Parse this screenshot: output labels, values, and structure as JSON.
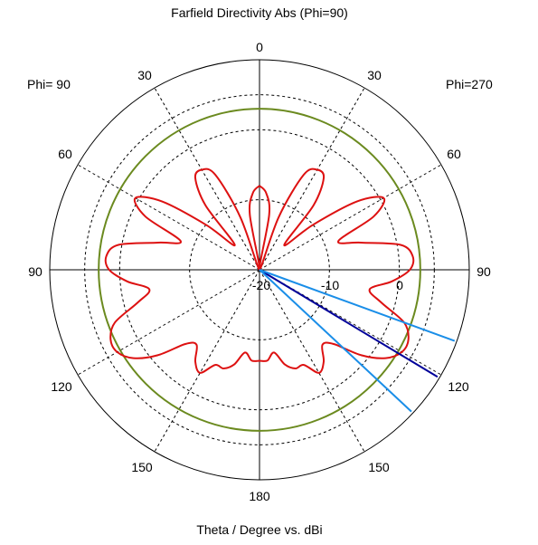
{
  "chart_data": {
    "type": "polar",
    "title": "Farfield Directivity Abs (Phi=90)",
    "xlabel": "Theta / Degree vs. dBi",
    "left_half_label": "Phi= 90",
    "right_half_label": "Phi=270",
    "angle_tick_labels": {
      "top": "0",
      "bottom": "180",
      "left": [
        "30",
        "60",
        "90",
        "120",
        "150"
      ],
      "right": [
        "30",
        "60",
        "90",
        "120",
        "150"
      ]
    },
    "radial_tick_labels": [
      "-20",
      "-10",
      "0"
    ],
    "radial_range_dbi": [
      -20,
      10
    ],
    "reference_circle_dbi": 3,
    "series": [
      {
        "color": "#dd1111",
        "theta_deg": [
          0,
          5,
          10,
          15,
          20,
          25,
          30,
          35,
          40,
          45,
          50,
          55,
          60,
          65,
          70,
          75,
          80,
          85,
          90,
          95,
          100,
          105,
          110,
          115,
          120,
          125,
          130,
          135,
          140,
          145,
          150,
          155,
          160,
          165,
          170,
          175,
          180,
          185,
          190,
          195,
          200,
          205,
          210,
          215,
          220,
          225,
          230,
          235,
          240,
          245,
          250,
          255,
          260,
          265,
          270,
          275,
          280,
          285,
          290,
          295,
          300,
          305,
          310,
          315,
          320,
          325,
          330,
          335,
          340,
          345,
          350,
          355,
          360
        ],
        "dbi": [
          -8,
          -9,
          -12,
          -20,
          -12,
          -5,
          -3.5,
          -4,
          -8,
          -15,
          -10,
          -3,
          0.5,
          -2,
          -8,
          -5,
          0.5,
          2,
          1.5,
          -1,
          -4,
          -2,
          2,
          3.5,
          3.5,
          2,
          -1,
          -5,
          -6,
          -4,
          -3,
          -5,
          -5,
          -6,
          -8,
          -7,
          -7,
          -7,
          -8,
          -6,
          -5,
          -5,
          -3,
          -4,
          -6,
          -5,
          -1,
          2,
          3.5,
          3.5,
          2,
          -2,
          -4,
          -1,
          1.5,
          2,
          0.5,
          -5,
          -8,
          -2,
          0.5,
          -3,
          -10,
          -15,
          -8,
          -4,
          -3.5,
          -5,
          -12,
          -20,
          -12,
          -9,
          -8
        ]
      }
    ],
    "markers": [
      {
        "name": "main lobe",
        "color": "#000099",
        "theta_deg": 121,
        "dbi": 3.5
      },
      {
        "name": "3 dB beamwidth left",
        "color": "#1a8ee8",
        "theta_deg": 110,
        "dbi": 3.5
      },
      {
        "name": "3 dB beamwidth right",
        "color": "#1a8ee8",
        "theta_deg": 133,
        "dbi": 3.5
      }
    ],
    "grid": true,
    "legend": "none"
  }
}
